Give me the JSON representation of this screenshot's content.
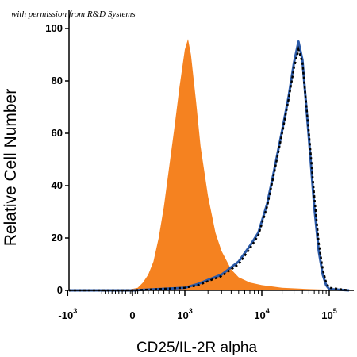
{
  "watermark": "with permission from R&D Systems",
  "chart_data": {
    "type": "area",
    "xlabel": "CD25/IL-2R alpha",
    "ylabel": "Relative Cell Number",
    "x_scale": "biexponential",
    "ylim": [
      0,
      100
    ],
    "yticks": [
      "0",
      "20",
      "40",
      "60",
      "80",
      "100"
    ],
    "xticks": [
      {
        "base": "-10",
        "exp": "3",
        "value": -1000
      },
      {
        "base": "0",
        "exp": "",
        "value": 0
      },
      {
        "base": "10",
        "exp": "3",
        "value": 1000
      },
      {
        "base": "10",
        "exp": "4",
        "value": 10000
      },
      {
        "base": "10",
        "exp": "5",
        "value": 100000
      }
    ],
    "grid": false,
    "series": [
      {
        "style": "filled",
        "color": "#f58220",
        "points": [
          [
            -1000,
            0
          ],
          [
            -200,
            0
          ],
          [
            100,
            1
          ],
          [
            200,
            3
          ],
          [
            300,
            6
          ],
          [
            400,
            11
          ],
          [
            500,
            20
          ],
          [
            600,
            32
          ],
          [
            700,
            47
          ],
          [
            800,
            62
          ],
          [
            900,
            78
          ],
          [
            1000,
            92
          ],
          [
            1100,
            96
          ],
          [
            1200,
            90
          ],
          [
            1400,
            72
          ],
          [
            1600,
            55
          ],
          [
            2000,
            36
          ],
          [
            2500,
            22
          ],
          [
            3000,
            15
          ],
          [
            4000,
            8
          ],
          [
            5000,
            5
          ],
          [
            7000,
            3
          ],
          [
            10000,
            2
          ],
          [
            20000,
            1
          ],
          [
            50000,
            0.5
          ],
          [
            150000,
            0
          ]
        ]
      },
      {
        "style": "solid",
        "color": "#2b5aa8",
        "points": [
          [
            -1000,
            0
          ],
          [
            0,
            0
          ],
          [
            500,
            0.5
          ],
          [
            1000,
            1
          ],
          [
            1500,
            2.5
          ],
          [
            2000,
            4
          ],
          [
            3000,
            6
          ],
          [
            5000,
            11
          ],
          [
            7000,
            17
          ],
          [
            9000,
            22
          ],
          [
            12000,
            33
          ],
          [
            15000,
            45
          ],
          [
            20000,
            61
          ],
          [
            25000,
            74
          ],
          [
            30000,
            87
          ],
          [
            35000,
            95
          ],
          [
            40000,
            88
          ],
          [
            50000,
            58
          ],
          [
            60000,
            32
          ],
          [
            70000,
            15
          ],
          [
            80000,
            6
          ],
          [
            90000,
            2
          ],
          [
            100000,
            0.5
          ],
          [
            150000,
            0
          ]
        ]
      },
      {
        "style": "dotted",
        "color": "#000000",
        "points": [
          [
            -1000,
            0
          ],
          [
            0,
            0
          ],
          [
            500,
            0.5
          ],
          [
            1000,
            1
          ],
          [
            1500,
            2
          ],
          [
            2000,
            3.5
          ],
          [
            3000,
            5.5
          ],
          [
            5000,
            10
          ],
          [
            7000,
            16
          ],
          [
            9000,
            21
          ],
          [
            12000,
            32
          ],
          [
            15000,
            44
          ],
          [
            20000,
            60
          ],
          [
            25000,
            73
          ],
          [
            30000,
            85
          ],
          [
            35000,
            92
          ],
          [
            40000,
            87
          ],
          [
            50000,
            60
          ],
          [
            60000,
            36
          ],
          [
            70000,
            18
          ],
          [
            80000,
            8
          ],
          [
            90000,
            3
          ],
          [
            100000,
            1
          ],
          [
            150000,
            0
          ]
        ]
      }
    ]
  }
}
